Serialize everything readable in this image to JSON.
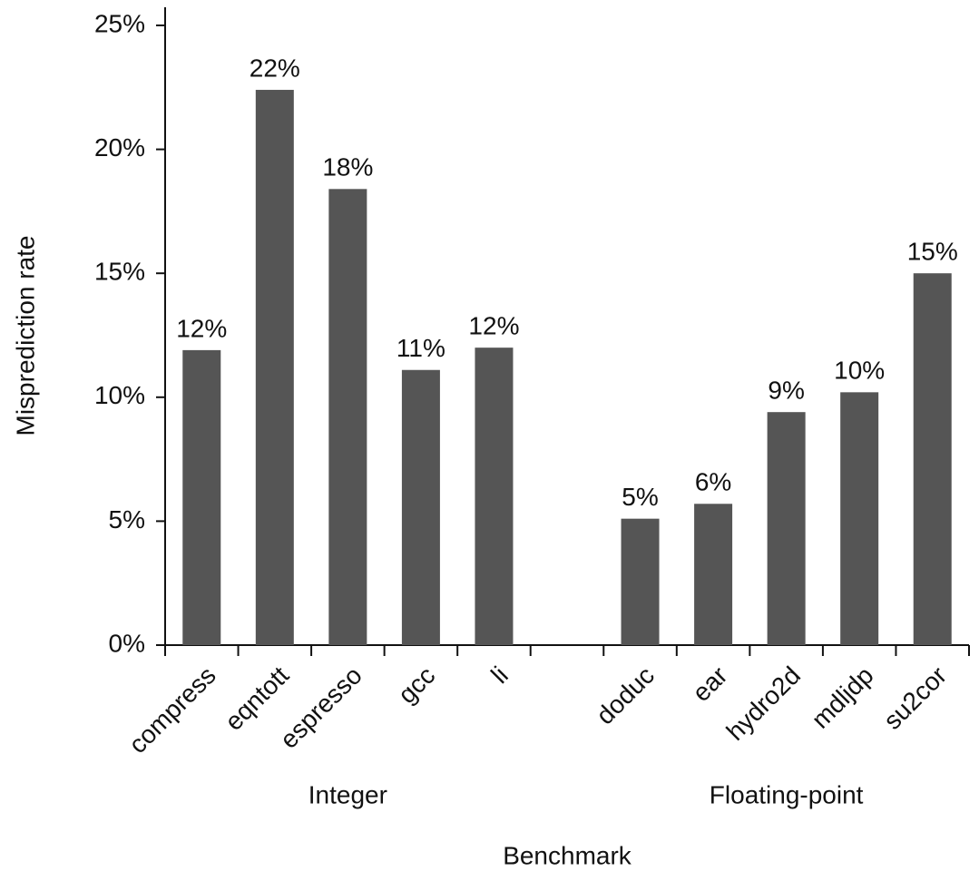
{
  "chart_data": {
    "type": "bar",
    "x_label": "Benchmark",
    "y_label": "Misprediction rate",
    "categories": [
      "compress",
      "eqntott",
      "espresso",
      "gcc",
      "li",
      null,
      "doduc",
      "ear",
      "hydro2d",
      "mdljdp",
      "su2cor"
    ],
    "values": [
      11.9,
      22.4,
      18.4,
      11.1,
      12.0,
      null,
      5.1,
      5.7,
      9.4,
      10.2,
      15.0
    ],
    "value_labels": [
      "12%",
      "22%",
      "18%",
      "11%",
      "12%",
      null,
      "5%",
      "6%",
      "9%",
      "10%",
      "15%"
    ],
    "groups": [
      "Integer",
      "Floating-point"
    ],
    "color": "#555555",
    "ylim": [
      0,
      25
    ],
    "yticks": [
      {
        "value": 0,
        "label": "0%"
      },
      {
        "value": 5,
        "label": "5%"
      },
      {
        "value": 10,
        "label": "10%"
      },
      {
        "value": 15,
        "label": "15%"
      },
      {
        "value": 20,
        "label": "20%"
      },
      {
        "value": 25,
        "label": "25%"
      }
    ],
    "grid": false
  }
}
